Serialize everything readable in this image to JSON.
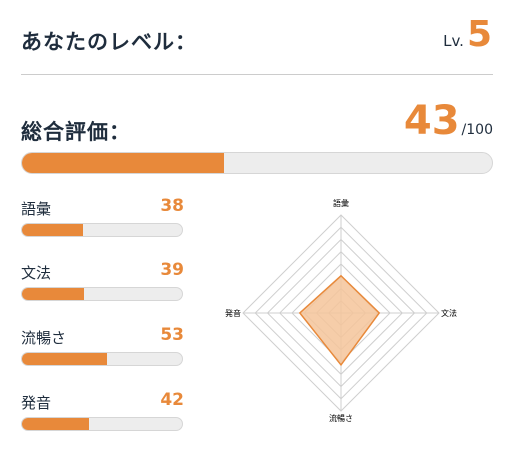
{
  "level": {
    "label": "あなたのレベル：",
    "prefix": "Lv.",
    "value": "5"
  },
  "overall": {
    "label": "総合評価：",
    "score": 43,
    "max_text": "/100",
    "progress_percent": 43
  },
  "metrics": [
    {
      "label": "語彙",
      "value": 38
    },
    {
      "label": "文法",
      "value": 39
    },
    {
      "label": "流暢さ",
      "value": 53
    },
    {
      "label": "発音",
      "value": 42
    }
  ],
  "radar": {
    "axes": [
      "語彙",
      "文法",
      "流暢さ",
      "発音"
    ],
    "max": 100,
    "rings": 8,
    "fill_color": "#f5c49a",
    "stroke_color": "#e8893a",
    "grid_color": "#cfcfcf"
  },
  "colors": {
    "accent": "#e8893a",
    "text": "#1f2d3d",
    "track": "#ededed"
  }
}
